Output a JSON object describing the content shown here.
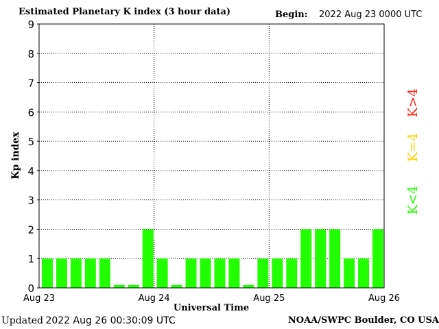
{
  "header": {
    "title": "Estimated Planetary K index (3 hour data)",
    "begin_label": "Begin:",
    "begin_value": "2022 Aug 23 0000 UTC"
  },
  "footer": {
    "updated_label": "Updated",
    "updated_value": "2022 Aug 26 00:30:09 UTC",
    "credit": "NOAA/SWPC Boulder, CO USA"
  },
  "legend": {
    "storm": {
      "label": "K>4",
      "color": "#ff2a1a"
    },
    "threshold": {
      "label": "K=4",
      "color": "#ffd200"
    },
    "quiet": {
      "label": "K<4",
      "color": "#22ff00"
    }
  },
  "chart_data": {
    "type": "bar",
    "title": "Estimated Planetary K index (3 hour data)",
    "xlabel": "Universal Time",
    "ylabel": "Kp index",
    "ylim": [
      0,
      9
    ],
    "yticks": [
      0,
      1,
      2,
      3,
      4,
      5,
      6,
      7,
      8,
      9
    ],
    "xticks": [
      {
        "index": 0,
        "label": "Aug 23"
      },
      {
        "index": 8,
        "label": "Aug 24"
      },
      {
        "index": 16,
        "label": "Aug 25"
      },
      {
        "index": 24,
        "label": "Aug 26"
      }
    ],
    "bar_count_slots": 24,
    "values": [
      1,
      1,
      1,
      1,
      1,
      0.1,
      0.1,
      2,
      1,
      0.1,
      1,
      1,
      1,
      1,
      0.1,
      1,
      1,
      1,
      2,
      2,
      2,
      1,
      1,
      2
    ],
    "bar_color": "#22ff00",
    "grid": "dotted"
  }
}
